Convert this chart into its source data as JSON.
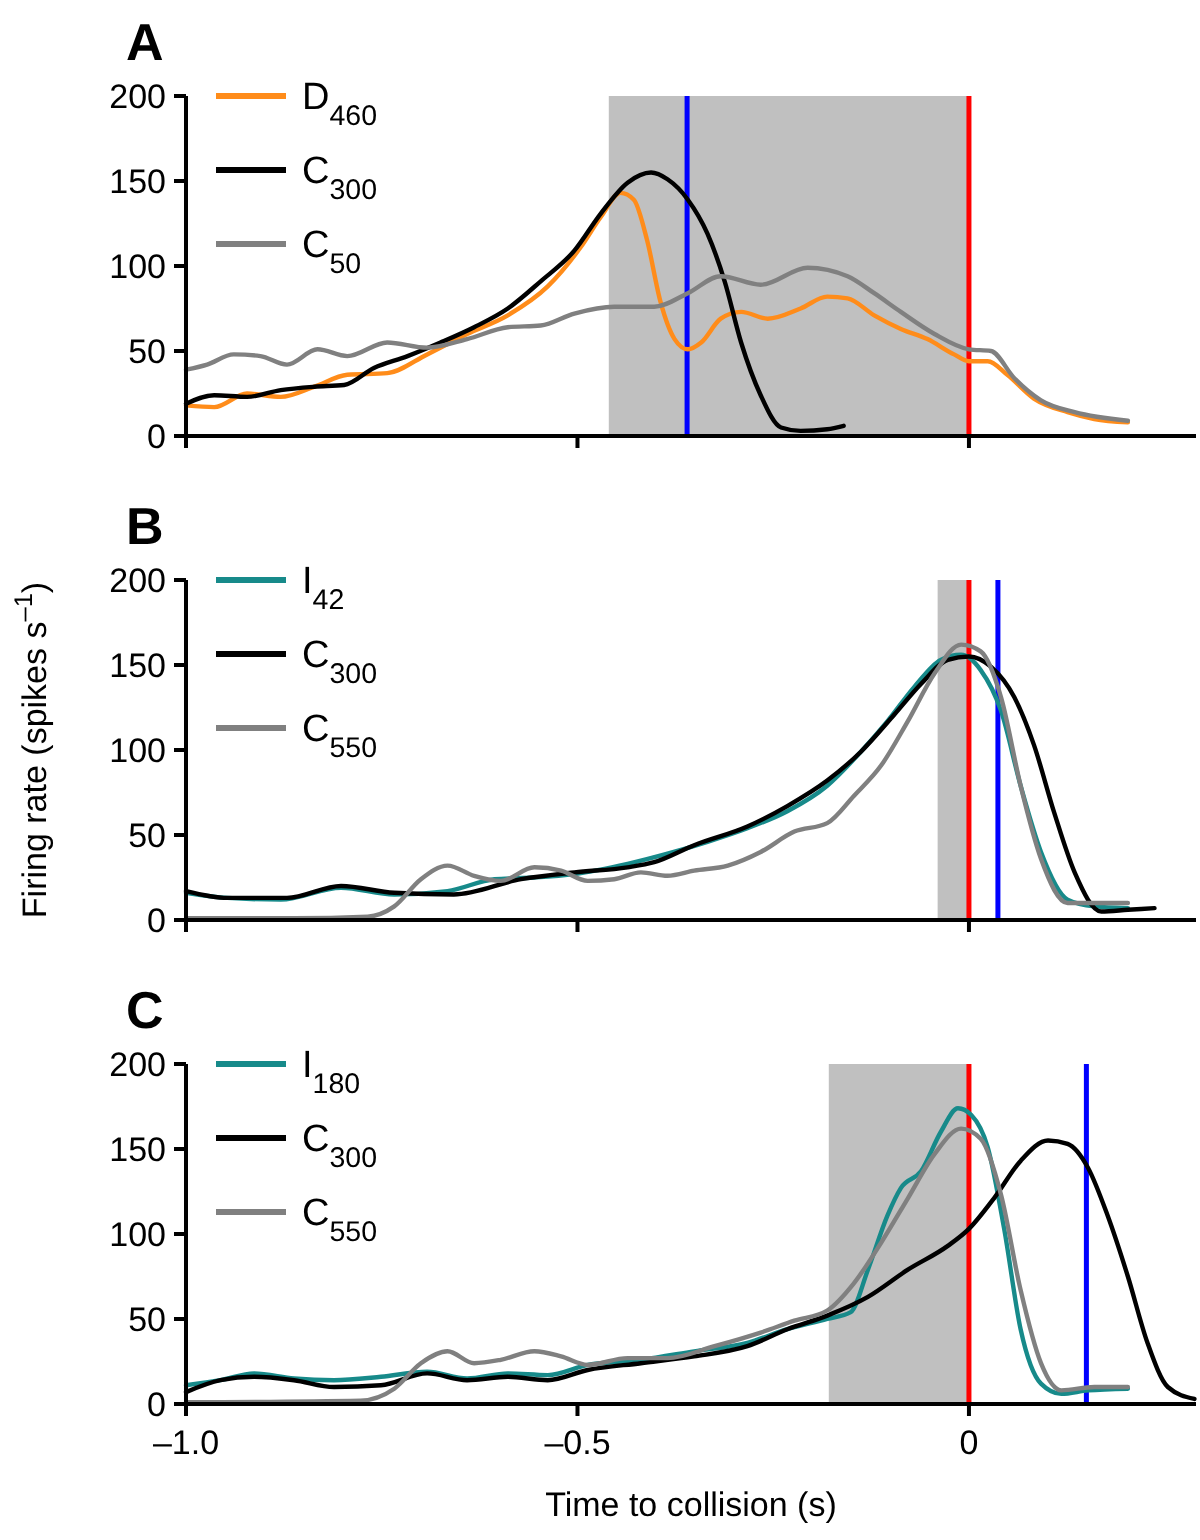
{
  "chart_data": [
    {
      "type": "line",
      "title": "A",
      "xlim": [
        -1,
        0.29
      ],
      "ylim": [
        0,
        200
      ],
      "xticks": [
        {
          "value": -1,
          "label": null
        },
        {
          "value": -0.5,
          "label": null
        },
        {
          "value": 0,
          "label": null
        }
      ],
      "yticks": [
        0,
        50,
        100,
        150,
        200
      ],
      "tick_labels": "y",
      "grid": false,
      "legend": "top left",
      "line_style": "solid",
      "marker": "none",
      "bands": [
        {
          "axis": "x",
          "from": -0.46,
          "to": 0,
          "color": "#c0c0c0"
        }
      ],
      "ref_lines": [
        {
          "axis": "x",
          "value": -0.36,
          "color": "#0000ff"
        },
        {
          "axis": "x",
          "value": 0,
          "color": "#ff0000"
        }
      ],
      "series": [
        {
          "name": "D$_{460}$",
          "color": "#ff8c1a",
          "x": [
            -1.0,
            -0.964,
            -0.922,
            -0.879,
            -0.836,
            -0.794,
            -0.743,
            -0.692,
            -0.641,
            -0.589,
            -0.538,
            -0.496,
            -0.47,
            -0.445,
            -0.428,
            -0.411,
            -0.394,
            -0.376,
            -0.359,
            -0.342,
            -0.317,
            -0.291,
            -0.257,
            -0.215,
            -0.181,
            -0.155,
            -0.121,
            -0.087,
            -0.053,
            -0.019,
            0,
            0.024,
            0.049,
            0.083,
            0.126,
            0.16,
            0.203
          ],
          "values": [
            18,
            17,
            25,
            23,
            29,
            36,
            37,
            48,
            60,
            71,
            88,
            111,
            129,
            143,
            139,
            115,
            79,
            57,
            51,
            55,
            69,
            73,
            69,
            75,
            82,
            81,
            71,
            63,
            57,
            48,
            44,
            44,
            36,
            22,
            14,
            10,
            8
          ]
        },
        {
          "name": "C$_{300}$",
          "color": "#000000",
          "x": [
            -1.0,
            -0.964,
            -0.922,
            -0.879,
            -0.836,
            -0.798,
            -0.76,
            -0.717,
            -0.675,
            -0.632,
            -0.589,
            -0.547,
            -0.504,
            -0.47,
            -0.436,
            -0.406,
            -0.385,
            -0.359,
            -0.334,
            -0.312,
            -0.291,
            -0.266,
            -0.24,
            -0.215,
            -0.181,
            -0.16
          ],
          "values": [
            19,
            24,
            23,
            27,
            29,
            30,
            40,
            47,
            55,
            64,
            75,
            91,
            109,
            131,
            149,
            155,
            151,
            139,
            119,
            91,
            55,
            24,
            5,
            3,
            4,
            6
          ]
        },
        {
          "name": "C$_{50}$",
          "color": "#808080",
          "x": [
            -1.0,
            -0.973,
            -0.939,
            -0.905,
            -0.871,
            -0.832,
            -0.794,
            -0.743,
            -0.692,
            -0.641,
            -0.589,
            -0.547,
            -0.504,
            -0.453,
            -0.402,
            -0.359,
            -0.317,
            -0.266,
            -0.206,
            -0.155,
            -0.121,
            -0.087,
            -0.044,
            0,
            0.028,
            0.058,
            0.092,
            0.135,
            0.203
          ],
          "values": [
            39,
            42,
            48,
            47,
            42,
            51,
            47,
            55,
            52,
            57,
            64,
            65,
            72,
            76,
            76,
            84,
            94,
            89,
            99,
            94,
            84,
            73,
            60,
            51,
            50,
            34,
            21,
            14,
            9
          ]
        }
      ]
    },
    {
      "type": "line",
      "title": "B",
      "ylabel": "Firing rate (spikes s$^{–1}$)",
      "xlim": [
        -1,
        0.29
      ],
      "ylim": [
        0,
        200
      ],
      "xticks": [
        {
          "value": -1,
          "label": null
        },
        {
          "value": -0.5,
          "label": null
        },
        {
          "value": 0,
          "label": null
        }
      ],
      "yticks": [
        0,
        50,
        100,
        150,
        200
      ],
      "tick_labels": "y",
      "grid": false,
      "legend": "top left",
      "line_style": "solid",
      "marker": "none",
      "bands": [
        {
          "axis": "x",
          "from": -0.04,
          "to": 0,
          "color": "#c0c0c0"
        }
      ],
      "ref_lines": [
        {
          "axis": "x",
          "value": 0,
          "color": "#ff0000"
        },
        {
          "axis": "x",
          "value": 0.037,
          "color": "#0000ff"
        }
      ],
      "series": [
        {
          "name": "I$_{42}$",
          "color": "#178a8a",
          "x": [
            -1.0,
            -0.947,
            -0.879,
            -0.802,
            -0.734,
            -0.666,
            -0.606,
            -0.555,
            -0.504,
            -0.436,
            -0.385,
            -0.334,
            -0.283,
            -0.232,
            -0.181,
            -0.138,
            -0.104,
            -0.07,
            -0.036,
            -0.01,
            0.015,
            0.041,
            0.066,
            0.092,
            0.126,
            0.16,
            0.203
          ],
          "values": [
            16,
            13,
            12,
            19,
            15,
            17,
            24,
            25,
            27,
            33,
            39,
            46,
            54,
            64,
            79,
            99,
            117,
            137,
            153,
            156,
            147,
            123,
            79,
            40,
            12,
            8,
            7
          ]
        },
        {
          "name": "C$_{300}$",
          "color": "#000000",
          "x": [
            -1.0,
            -0.947,
            -0.871,
            -0.802,
            -0.734,
            -0.658,
            -0.572,
            -0.504,
            -0.436,
            -0.402,
            -0.351,
            -0.283,
            -0.232,
            -0.181,
            -0.138,
            -0.095,
            -0.061,
            -0.027,
            0,
            0.028,
            0.058,
            0.083,
            0.109,
            0.135,
            0.169,
            0.203,
            0.237
          ],
          "values": [
            17,
            13,
            13,
            20,
            16,
            15,
            24,
            28,
            31,
            34,
            44,
            55,
            67,
            82,
            99,
            121,
            139,
            153,
            155,
            149,
            131,
            103,
            63,
            28,
            5,
            6,
            7
          ]
        },
        {
          "name": "C$_{550}$",
          "color": "#808080",
          "x": [
            -1.0,
            -0.862,
            -0.768,
            -0.734,
            -0.7,
            -0.666,
            -0.632,
            -0.598,
            -0.555,
            -0.521,
            -0.487,
            -0.453,
            -0.419,
            -0.385,
            -0.351,
            -0.308,
            -0.266,
            -0.223,
            -0.181,
            -0.147,
            -0.112,
            -0.078,
            -0.044,
            -0.01,
            0.015,
            0.041,
            0.066,
            0.092,
            0.126,
            0.16,
            0.203
          ],
          "values": [
            1,
            1,
            2,
            8,
            24,
            32,
            26,
            23,
            31,
            29,
            23,
            24,
            28,
            26,
            29,
            32,
            40,
            52,
            57,
            73,
            91,
            117,
            145,
            162,
            158,
            131,
            79,
            36,
            10,
            10,
            10
          ]
        }
      ]
    },
    {
      "type": "line",
      "title": "C",
      "xlabel": "Time to collision (s)",
      "xlim": [
        -1,
        0.29
      ],
      "ylim": [
        0,
        200
      ],
      "xticks": [
        {
          "value": -1,
          "label": "–1.0"
        },
        {
          "value": -0.5,
          "label": "–0.5"
        },
        0
      ],
      "yticks": [
        0,
        50,
        100,
        150,
        200
      ],
      "grid": false,
      "legend": "top left",
      "line_style": "solid",
      "marker": "none",
      "bands": [
        {
          "axis": "x",
          "from": -0.179,
          "to": 0,
          "color": "#c0c0c0"
        }
      ],
      "ref_lines": [
        {
          "axis": "x",
          "value": 0,
          "color": "#ff0000"
        },
        {
          "axis": "x",
          "value": 0.15,
          "color": "#0000ff"
        }
      ],
      "series": [
        {
          "name": "I$_{180}$",
          "color": "#178a8a",
          "x": [
            -1.0,
            -0.956,
            -0.913,
            -0.862,
            -0.811,
            -0.751,
            -0.692,
            -0.641,
            -0.589,
            -0.538,
            -0.487,
            -0.419,
            -0.351,
            -0.283,
            -0.232,
            -0.181,
            -0.151,
            -0.129,
            -0.104,
            -0.087,
            -0.061,
            -0.036,
            -0.014,
            0.003,
            0.024,
            0.045,
            0.066,
            0.092,
            0.118,
            0.152,
            0.203
          ],
          "values": [
            11,
            14,
            18,
            15,
            14,
            16,
            19,
            15,
            18,
            17,
            23,
            26,
            31,
            36,
            44,
            50,
            54,
            79,
            111,
            127,
            137,
            160,
            174,
            170,
            151,
            103,
            44,
            12,
            6,
            8,
            9
          ]
        },
        {
          "name": "C$_{300}$",
          "color": "#000000",
          "x": [
            -1.0,
            -0.956,
            -0.913,
            -0.862,
            -0.811,
            -0.751,
            -0.692,
            -0.641,
            -0.589,
            -0.538,
            -0.487,
            -0.419,
            -0.351,
            -0.283,
            -0.232,
            -0.181,
            -0.129,
            -0.078,
            -0.027,
            0,
            0.032,
            0.066,
            0.101,
            0.126,
            0.152,
            0.177,
            0.203,
            0.228,
            0.254,
            0.288
          ],
          "values": [
            7,
            14,
            16,
            14,
            10,
            11,
            18,
            14,
            16,
            14,
            20,
            24,
            28,
            34,
            44,
            52,
            63,
            79,
            93,
            103,
            121,
            143,
            155,
            153,
            139,
            111,
            75,
            36,
            10,
            3
          ]
        },
        {
          "name": "C$_{550}$",
          "color": "#808080",
          "x": [
            -1.0,
            -0.777,
            -0.734,
            -0.7,
            -0.666,
            -0.632,
            -0.598,
            -0.555,
            -0.521,
            -0.487,
            -0.436,
            -0.385,
            -0.325,
            -0.266,
            -0.223,
            -0.181,
            -0.147,
            -0.112,
            -0.078,
            -0.044,
            -0.01,
            0.015,
            0.041,
            0.066,
            0.092,
            0.118,
            0.16,
            0.203
          ],
          "values": [
            1,
            2,
            9,
            24,
            31,
            24,
            26,
            31,
            28,
            23,
            27,
            27,
            34,
            42,
            49,
            55,
            71,
            95,
            121,
            147,
            162,
            156,
            123,
            67,
            24,
            8,
            10,
            10
          ]
        }
      ]
    }
  ]
}
